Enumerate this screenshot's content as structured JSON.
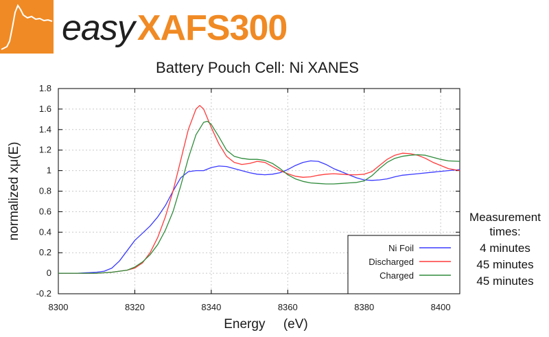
{
  "logo": {
    "word_easy": "easy",
    "word_product": "XAFS300",
    "brand_color": "#f08a24"
  },
  "side_note": {
    "heading_line1": "Measurement",
    "heading_line2": "times:",
    "times": [
      "4 minutes",
      "45 minutes",
      "45 minutes"
    ]
  },
  "chart_data": {
    "type": "line",
    "title": "Battery Pouch Cell: Ni XANES",
    "xlabel": "Energy     (eV)",
    "ylabel": "normalized xμ(E)",
    "xlim": [
      8300,
      8405
    ],
    "ylim": [
      -0.2,
      1.8
    ],
    "x_ticks": [
      8300,
      8320,
      8340,
      8360,
      8380,
      8400
    ],
    "y_ticks": [
      -0.2,
      0,
      0.2,
      0.4,
      0.6,
      0.8,
      1,
      1.2,
      1.4,
      1.6,
      1.8
    ],
    "y_tick_labels": [
      "-0.2",
      "0",
      "0.2",
      "0.4",
      "0.6",
      "0.8",
      "1",
      "1.2",
      "1.4",
      "1.6",
      "1.8"
    ],
    "grid": true,
    "legend_position": "bottom-right",
    "series": [
      {
        "name": "Ni Foil",
        "color": "#3a3aff",
        "points": [
          [
            8300,
            0
          ],
          [
            8305,
            0
          ],
          [
            8310,
            0.01
          ],
          [
            8312,
            0.02
          ],
          [
            8314,
            0.05
          ],
          [
            8316,
            0.12
          ],
          [
            8318,
            0.22
          ],
          [
            8320,
            0.32
          ],
          [
            8322,
            0.39
          ],
          [
            8324,
            0.46
          ],
          [
            8326,
            0.55
          ],
          [
            8328,
            0.66
          ],
          [
            8330,
            0.8
          ],
          [
            8332,
            0.93
          ],
          [
            8334,
            0.99
          ],
          [
            8336,
            1.0
          ],
          [
            8338,
            1.0
          ],
          [
            8340,
            1.03
          ],
          [
            8342,
            1.045
          ],
          [
            8344,
            1.04
          ],
          [
            8346,
            1.02
          ],
          [
            8348,
            1.0
          ],
          [
            8350,
            0.98
          ],
          [
            8352,
            0.965
          ],
          [
            8354,
            0.96
          ],
          [
            8356,
            0.965
          ],
          [
            8358,
            0.98
          ],
          [
            8360,
            1.01
          ],
          [
            8362,
            1.05
          ],
          [
            8364,
            1.08
          ],
          [
            8366,
            1.095
          ],
          [
            8368,
            1.09
          ],
          [
            8370,
            1.06
          ],
          [
            8372,
            1.02
          ],
          [
            8374,
            0.99
          ],
          [
            8376,
            0.96
          ],
          [
            8378,
            0.93
          ],
          [
            8380,
            0.91
          ],
          [
            8382,
            0.905
          ],
          [
            8384,
            0.91
          ],
          [
            8386,
            0.92
          ],
          [
            8388,
            0.94
          ],
          [
            8390,
            0.955
          ],
          [
            8394,
            0.97
          ],
          [
            8398,
            0.985
          ],
          [
            8402,
            1.0
          ],
          [
            8405,
            1.01
          ]
        ]
      },
      {
        "name": "Discharged",
        "color": "#ff3a3a",
        "points": [
          [
            8300,
            0
          ],
          [
            8305,
            0
          ],
          [
            8310,
            0
          ],
          [
            8314,
            0.01
          ],
          [
            8318,
            0.03
          ],
          [
            8320,
            0.05
          ],
          [
            8322,
            0.1
          ],
          [
            8324,
            0.2
          ],
          [
            8326,
            0.35
          ],
          [
            8328,
            0.55
          ],
          [
            8330,
            0.8
          ],
          [
            8332,
            1.1
          ],
          [
            8334,
            1.4
          ],
          [
            8336,
            1.6
          ],
          [
            8337,
            1.635
          ],
          [
            8338,
            1.6
          ],
          [
            8340,
            1.42
          ],
          [
            8342,
            1.26
          ],
          [
            8344,
            1.14
          ],
          [
            8346,
            1.08
          ],
          [
            8348,
            1.06
          ],
          [
            8350,
            1.07
          ],
          [
            8352,
            1.09
          ],
          [
            8354,
            1.08
          ],
          [
            8356,
            1.04
          ],
          [
            8358,
            1.0
          ],
          [
            8360,
            0.97
          ],
          [
            8362,
            0.945
          ],
          [
            8364,
            0.935
          ],
          [
            8366,
            0.94
          ],
          [
            8368,
            0.955
          ],
          [
            8370,
            0.965
          ],
          [
            8372,
            0.97
          ],
          [
            8374,
            0.965
          ],
          [
            8376,
            0.96
          ],
          [
            8378,
            0.96
          ],
          [
            8380,
            0.965
          ],
          [
            8382,
            0.99
          ],
          [
            8384,
            1.05
          ],
          [
            8386,
            1.11
          ],
          [
            8388,
            1.15
          ],
          [
            8390,
            1.17
          ],
          [
            8392,
            1.165
          ],
          [
            8394,
            1.15
          ],
          [
            8396,
            1.12
          ],
          [
            8398,
            1.08
          ],
          [
            8400,
            1.05
          ],
          [
            8402,
            1.02
          ],
          [
            8405,
            1.0
          ]
        ]
      },
      {
        "name": "Charged",
        "color": "#2e8b3a",
        "points": [
          [
            8300,
            0
          ],
          [
            8305,
            0
          ],
          [
            8310,
            0
          ],
          [
            8314,
            0.01
          ],
          [
            8318,
            0.03
          ],
          [
            8320,
            0.06
          ],
          [
            8322,
            0.11
          ],
          [
            8324,
            0.18
          ],
          [
            8326,
            0.28
          ],
          [
            8328,
            0.42
          ],
          [
            8330,
            0.6
          ],
          [
            8332,
            0.85
          ],
          [
            8334,
            1.12
          ],
          [
            8336,
            1.35
          ],
          [
            8338,
            1.47
          ],
          [
            8339,
            1.48
          ],
          [
            8340,
            1.45
          ],
          [
            8342,
            1.33
          ],
          [
            8344,
            1.2
          ],
          [
            8346,
            1.14
          ],
          [
            8348,
            1.12
          ],
          [
            8350,
            1.11
          ],
          [
            8352,
            1.11
          ],
          [
            8354,
            1.1
          ],
          [
            8356,
            1.07
          ],
          [
            8358,
            1.02
          ],
          [
            8360,
            0.96
          ],
          [
            8362,
            0.92
          ],
          [
            8364,
            0.895
          ],
          [
            8366,
            0.88
          ],
          [
            8368,
            0.875
          ],
          [
            8370,
            0.87
          ],
          [
            8372,
            0.87
          ],
          [
            8374,
            0.875
          ],
          [
            8376,
            0.88
          ],
          [
            8378,
            0.885
          ],
          [
            8380,
            0.9
          ],
          [
            8382,
            0.95
          ],
          [
            8384,
            1.02
          ],
          [
            8386,
            1.08
          ],
          [
            8388,
            1.12
          ],
          [
            8390,
            1.14
          ],
          [
            8392,
            1.15
          ],
          [
            8394,
            1.155
          ],
          [
            8396,
            1.15
          ],
          [
            8398,
            1.13
          ],
          [
            8400,
            1.11
          ],
          [
            8402,
            1.095
          ],
          [
            8405,
            1.09
          ]
        ]
      }
    ]
  }
}
